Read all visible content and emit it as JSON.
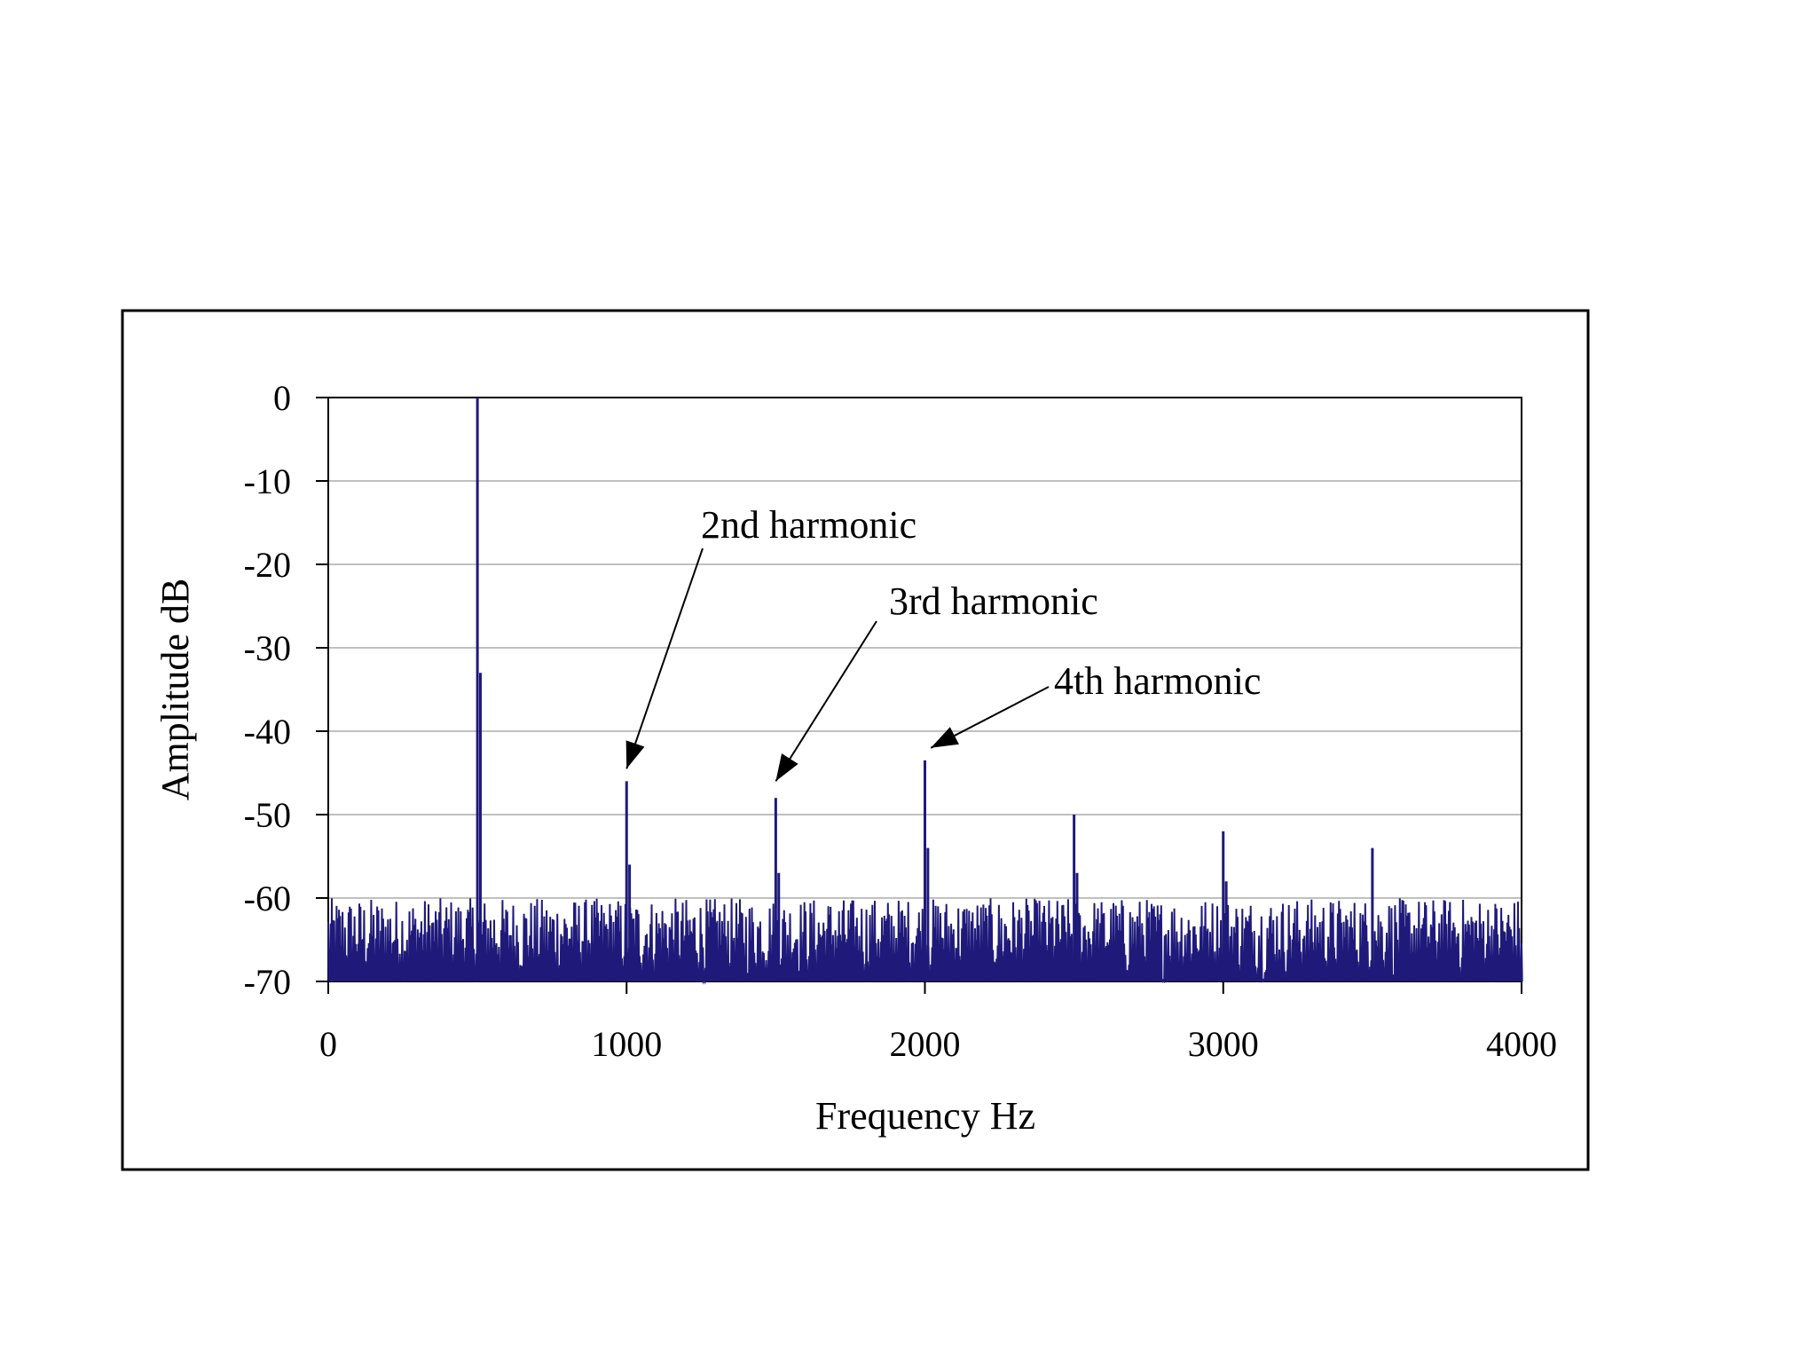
{
  "chart_data": {
    "type": "line",
    "xlabel": "Frequency Hz",
    "ylabel": "Amplitude  dB",
    "xlim": [
      0,
      4000
    ],
    "ylim": [
      -70,
      0
    ],
    "x_ticks": [
      0,
      1000,
      2000,
      3000,
      4000
    ],
    "y_ticks": [
      0,
      -10,
      -20,
      -30,
      -40,
      -50,
      -60,
      -70
    ],
    "x_tick_labels": [
      "0",
      "1000",
      "2000",
      "3000",
      "4000"
    ],
    "y_tick_labels": [
      "0",
      "-10",
      "-20",
      "-30",
      "-40",
      "-50",
      "-60",
      "-70"
    ],
    "grid": "horizontal",
    "series_color": "#1f1a7a",
    "noise_floor": {
      "min_db": -70,
      "max_db": -60
    },
    "peaks": [
      {
        "x": 500,
        "y": 0
      },
      {
        "x": 510,
        "y": -33
      },
      {
        "x": 1000,
        "y": -46
      },
      {
        "x": 1010,
        "y": -56
      },
      {
        "x": 1500,
        "y": -48
      },
      {
        "x": 1510,
        "y": -57
      },
      {
        "x": 2000,
        "y": -43.5
      },
      {
        "x": 2010,
        "y": -54
      },
      {
        "x": 2500,
        "y": -50
      },
      {
        "x": 2510,
        "y": -57
      },
      {
        "x": 3000,
        "y": -52
      },
      {
        "x": 3010,
        "y": -58
      },
      {
        "x": 3500,
        "y": -54
      }
    ],
    "annotations": [
      {
        "text": "2nd harmonic",
        "target": {
          "x": 1000,
          "y": -44.5
        }
      },
      {
        "text": "3rd harmonic",
        "target": {
          "x": 1500,
          "y": -46
        }
      },
      {
        "text": "4th harmonic",
        "target": {
          "x": 2020,
          "y": -42
        }
      }
    ]
  }
}
